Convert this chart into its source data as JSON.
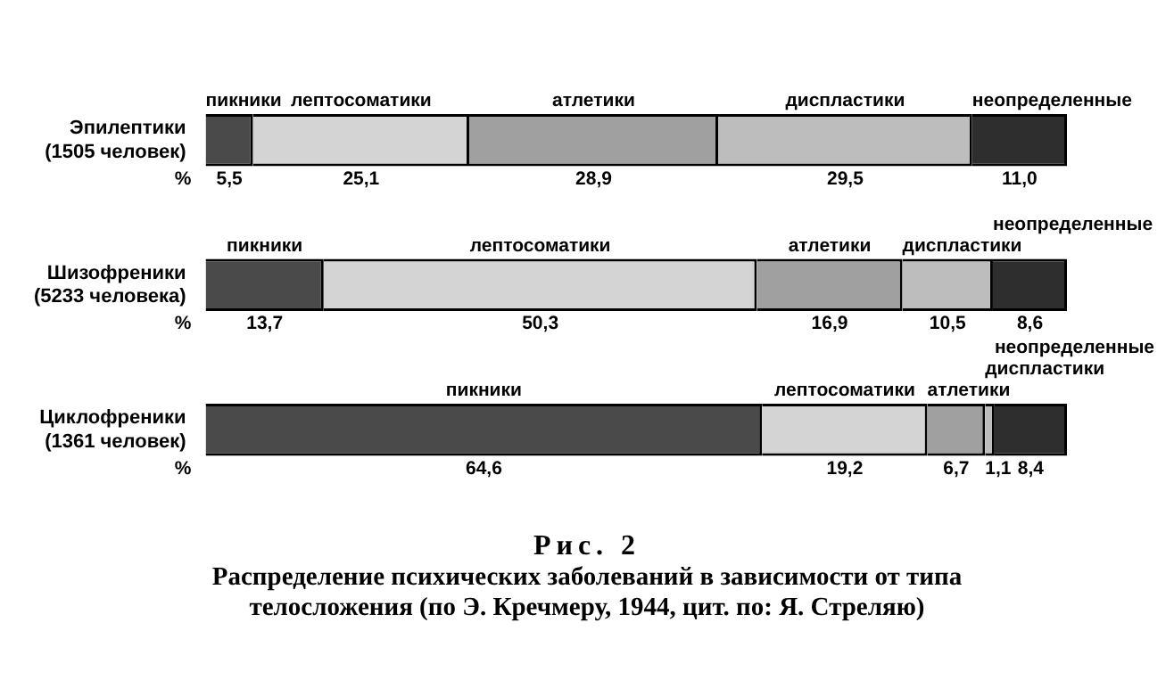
{
  "chart_data": {
    "type": "bar",
    "orientation": "horizontal",
    "stacked": true,
    "title": "Рис. 2",
    "subtitle": "Распределение психических заболеваний в зависимости от типа телосложения (по Э. Кречмеру, 1944, цит. по: Я. Стреляю)",
    "xlabel": "%",
    "categories": [
      "Эпилептики (1505 человек)",
      "Шизофреники (5233 человека)",
      "Циклофреники (1361 человек)"
    ],
    "series": [
      {
        "name": "пикники",
        "color": "#4a4a4a",
        "values": [
          5.5,
          13.7,
          64.6
        ],
        "value_labels": [
          "5,5",
          "13,7",
          "64,6"
        ]
      },
      {
        "name": "лептосоматики",
        "color": "#d4d4d4",
        "values": [
          25.1,
          50.3,
          19.2
        ],
        "value_labels": [
          "25,1",
          "50,3",
          "19,2"
        ]
      },
      {
        "name": "атлетики",
        "color": "#a0a0a0",
        "values": [
          28.9,
          16.9,
          6.7
        ],
        "value_labels": [
          "28,9",
          "16,9",
          "6,7"
        ]
      },
      {
        "name": "диспластики",
        "color": "#bdbdbd",
        "values": [
          29.5,
          10.5,
          1.1
        ],
        "value_labels": [
          "29,5",
          "10,5",
          "1,1"
        ]
      },
      {
        "name": "неопределенные",
        "color": "#2e2e2e",
        "values": [
          11.0,
          8.6,
          8.4
        ],
        "value_labels": [
          "11,0",
          "8,6",
          "8,4"
        ]
      }
    ],
    "legend": false
  }
}
